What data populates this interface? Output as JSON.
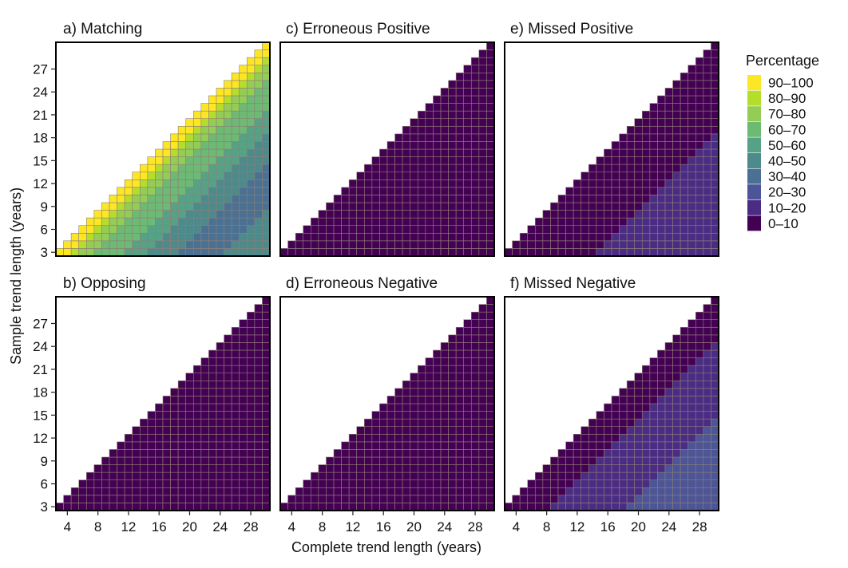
{
  "chart_data": {
    "type": "heatmap",
    "xlabel": "Complete trend length (years)",
    "ylabel": "Sample trend length (years)",
    "x_range": [
      3,
      30
    ],
    "y_range": [
      3,
      30
    ],
    "x_ticks": [
      4,
      8,
      12,
      16,
      20,
      24,
      28
    ],
    "y_ticks": [
      3,
      6,
      9,
      12,
      15,
      18,
      21,
      24,
      27
    ],
    "cell_rule": "cells exist where sample trend length <= complete trend length",
    "legend": {
      "title": "Percentage",
      "placement": "right",
      "bins": [
        {
          "label": "90–100",
          "color": "#FDE725"
        },
        {
          "label": "80–90",
          "color": "#B5DE2B"
        },
        {
          "label": "70–80",
          "color": "#93CD56"
        },
        {
          "label": "60–70",
          "color": "#6DBA75"
        },
        {
          "label": "50–60",
          "color": "#56A287"
        },
        {
          "label": "40–50",
          "color": "#4C8A8B"
        },
        {
          "label": "30–40",
          "color": "#4A7193"
        },
        {
          "label": "20–30",
          "color": "#4C5597"
        },
        {
          "label": "10–20",
          "color": "#4B2C84"
        },
        {
          "label": "0–10",
          "color": "#440154"
        }
      ]
    },
    "panels": [
      {
        "title": "a) Matching",
        "bin_breaks": [
          0.045,
          0.1,
          0.18,
          0.3,
          0.42,
          0.58,
          0.78,
          10
        ],
        "bin_indices": [
          0,
          1,
          2,
          3,
          4,
          5,
          6,
          5
        ]
      },
      {
        "title": "b) Opposing",
        "bin_breaks": [
          10
        ],
        "bin_indices": [
          9
        ]
      },
      {
        "title": "c) Erroneous Positive",
        "bin_breaks": [
          10
        ],
        "bin_indices": [
          9
        ]
      },
      {
        "title": "d) Erroneous Negative",
        "bin_breaks": [
          10
        ],
        "bin_indices": [
          9
        ]
      },
      {
        "title": "e) Missed Positive",
        "bin_breaks": [
          0.42,
          10
        ],
        "bin_indices": [
          9,
          8
        ]
      },
      {
        "title": "f) Missed Negative",
        "bin_breaks": [
          0.22,
          0.58,
          10
        ],
        "bin_indices": [
          9,
          8,
          7
        ]
      }
    ]
  }
}
